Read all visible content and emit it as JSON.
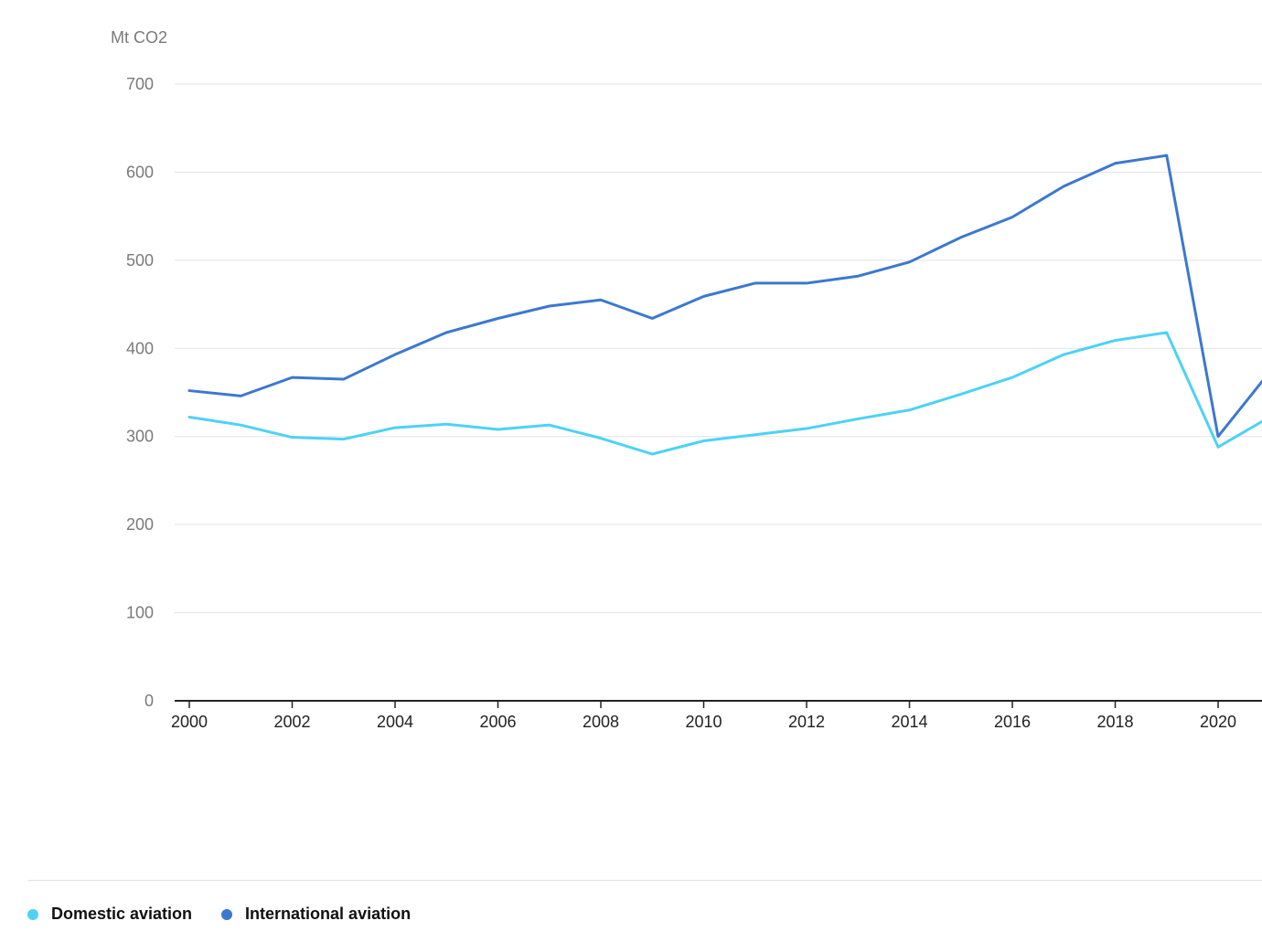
{
  "chart_data": {
    "type": "line",
    "title": "",
    "xlabel": "",
    "ylabel": "Mt CO2",
    "ylim": [
      0,
      700
    ],
    "yticks": [
      0,
      100,
      200,
      300,
      400,
      500,
      600,
      700
    ],
    "x": [
      2000,
      2001,
      2002,
      2003,
      2004,
      2005,
      2006,
      2007,
      2008,
      2009,
      2010,
      2011,
      2012,
      2013,
      2014,
      2015,
      2016,
      2017,
      2018,
      2019,
      2020,
      2021
    ],
    "xticks": [
      "2000",
      "2002",
      "2004",
      "2006",
      "2008",
      "2010",
      "2012",
      "2014",
      "2016",
      "2018",
      "2020"
    ],
    "grid": true,
    "legend_position": "bottom-left",
    "series": [
      {
        "name": "Domestic aviation",
        "color": "#4dd2f5",
        "values": [
          322,
          313,
          299,
          297,
          310,
          314,
          308,
          313,
          298,
          280,
          295,
          302,
          309,
          320,
          330,
          348,
          367,
          393,
          409,
          418,
          288,
          322
        ]
      },
      {
        "name": "International aviation",
        "color": "#3c78cf",
        "values": [
          352,
          346,
          367,
          365,
          393,
          418,
          434,
          448,
          455,
          434,
          459,
          474,
          474,
          482,
          498,
          526,
          549,
          584,
          610,
          619,
          300,
          373
        ]
      }
    ]
  },
  "legend": {
    "items": [
      {
        "label": "Domestic aviation",
        "color": "#4dd2f5"
      },
      {
        "label": "International aviation",
        "color": "#3c78cf"
      }
    ]
  }
}
